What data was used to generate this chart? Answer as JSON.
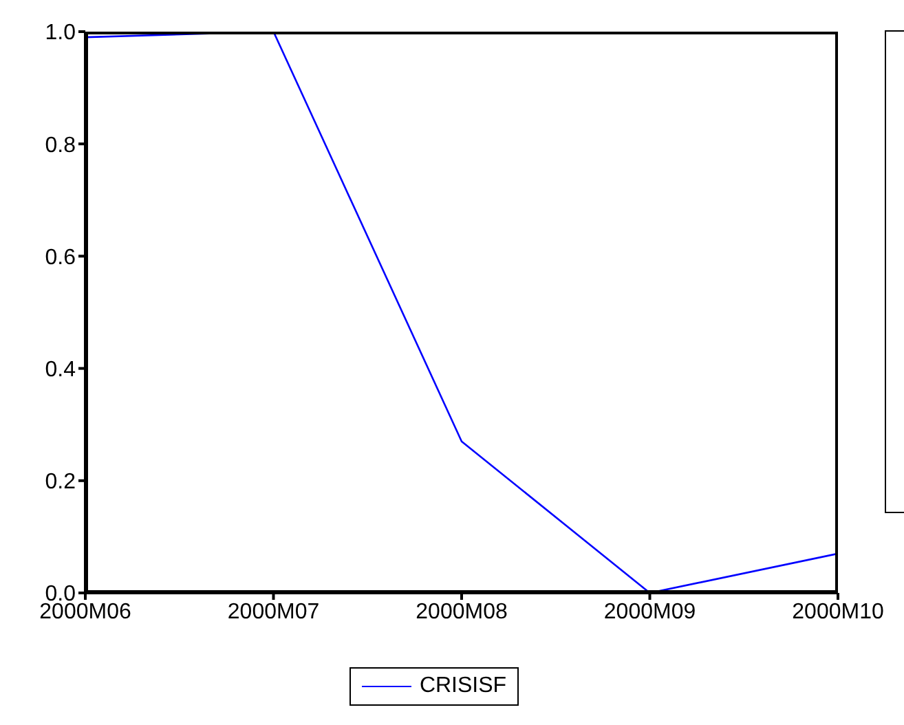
{
  "chart_data": {
    "type": "line",
    "categories": [
      "2000M06",
      "2000M07",
      "2000M08",
      "2000M09",
      "2000M10"
    ],
    "series": [
      {
        "name": "CRISISF",
        "color": "#0000ff",
        "values": [
          0.99,
          1.0,
          0.27,
          0.0,
          0.07
        ]
      }
    ],
    "ylim": [
      0,
      1
    ],
    "yticks": [
      {
        "value": 0,
        "label": "0.0"
      },
      {
        "value": 0.2,
        "label": "0.2"
      },
      {
        "value": 0.4,
        "label": "0.4"
      },
      {
        "value": 0.6,
        "label": "0.6"
      },
      {
        "value": 0.8,
        "label": "0.8"
      },
      {
        "value": 1,
        "label": "1.0"
      }
    ],
    "grid": false,
    "legend": "bottom",
    "marker": "none",
    "line_style": "solid"
  }
}
